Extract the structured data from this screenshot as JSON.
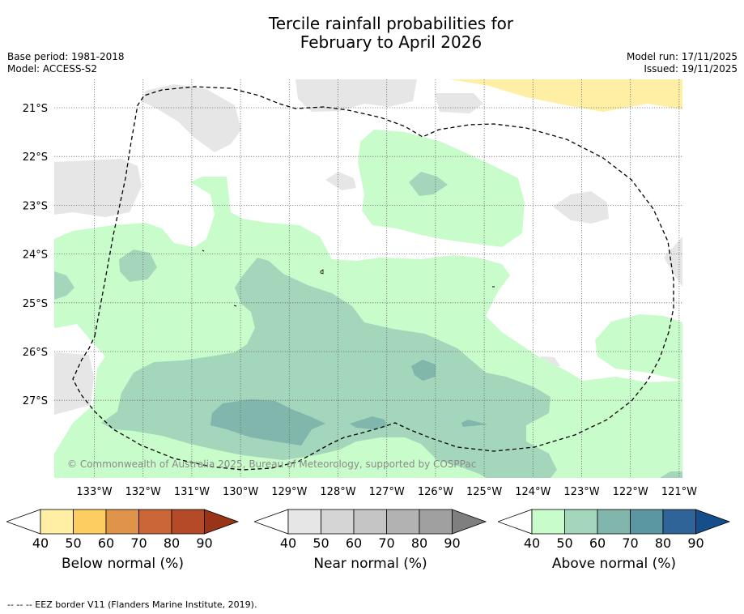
{
  "title_line1": "Tercile rainfall probabilities for",
  "title_line2": "February to April 2026",
  "base_period": "Base period: 1981-2018",
  "model": "Model: ACCESS-S2",
  "model_run": "Model run: 17/11/2025",
  "issued": "Issued: 19/11/2025",
  "copyright": "© Commonwealth of Australia 2025, Bureau of Meteorology, supported by COSPPac",
  "lat_labels": [
    "21°S",
    "22°S",
    "23°S",
    "24°S",
    "25°S",
    "26°S",
    "27°S"
  ],
  "lon_labels": [
    "133°W",
    "132°W",
    "131°W",
    "130°W",
    "129°W",
    "128°W",
    "127°W",
    "126°W",
    "125°W",
    "124°W",
    "123°W",
    "122°W",
    "121°W"
  ],
  "legends": [
    {
      "label": "Below normal (%)",
      "ticks": [
        "40",
        "50",
        "60",
        "70",
        "80",
        "90"
      ],
      "colors": [
        "#ffffff",
        "#ffefa4",
        "#fdcd62",
        "#e0944a",
        "#cb6636",
        "#b44a28",
        "#9a3419"
      ]
    },
    {
      "label": "Near normal (%)",
      "ticks": [
        "40",
        "50",
        "60",
        "70",
        "80",
        "90"
      ],
      "colors": [
        "#ffffff",
        "#e6e6e6",
        "#d5d5d5",
        "#c5c5c5",
        "#b2b2b2",
        "#a0a0a0",
        "#7f7f7f"
      ]
    },
    {
      "label": "Above normal (%)",
      "ticks": [
        "40",
        "50",
        "60",
        "70",
        "80",
        "90"
      ],
      "colors": [
        "#ffffff",
        "#c8fccb",
        "#a3d6bb",
        "#80b6ac",
        "#5b96a3",
        "#2f6499",
        "#154e8a"
      ]
    }
  ],
  "footer": "--  --  -- EEZ border V11 (Flanders Marine Institute, 2019)."
}
